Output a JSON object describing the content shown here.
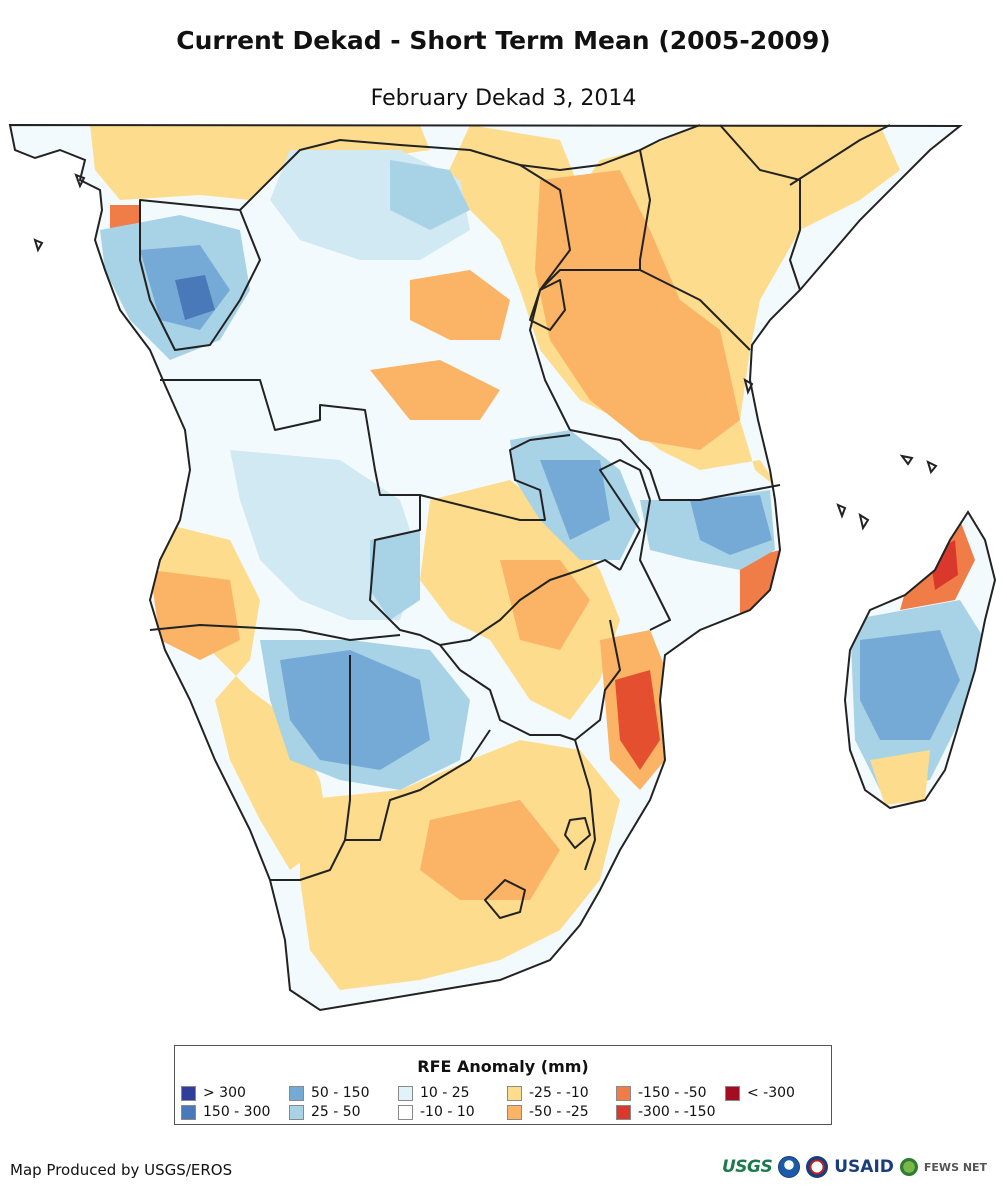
{
  "title": "Current Dekad - Short Term Mean (2005-2009)",
  "subtitle": "February Dekad 3, 2014",
  "legend": {
    "title": "RFE Anomaly (mm)",
    "items": [
      {
        "label": "> 300",
        "color": "#2f3f99"
      },
      {
        "label": "150 - 300",
        "color": "#4a79b9"
      },
      {
        "label": "50 - 150",
        "color": "#76aad6"
      },
      {
        "label": "25 - 50",
        "color": "#a8d3e6"
      },
      {
        "label": "10 - 25",
        "color": "#e2f2f9"
      },
      {
        "label": "-10 - 10",
        "color": "#ffffff"
      },
      {
        "label": "-25 - -10",
        "color": "#fddc8e"
      },
      {
        "label": "-50 - -25",
        "color": "#fbb366"
      },
      {
        "label": "-150 - -50",
        "color": "#f07c48"
      },
      {
        "label": "-300 - -150",
        "color": "#d9382a"
      },
      {
        "label": "< -300",
        "color": "#a30d22"
      }
    ]
  },
  "footer": {
    "credit": "Map Produced by USGS/EROS",
    "logos": {
      "usgs": "USGS",
      "usaid": "USAID",
      "fews": "FEWS NET"
    }
  },
  "icons": [
    "noaa-logo-icon",
    "nasa-seal-icon",
    "fews-globe-icon"
  ]
}
